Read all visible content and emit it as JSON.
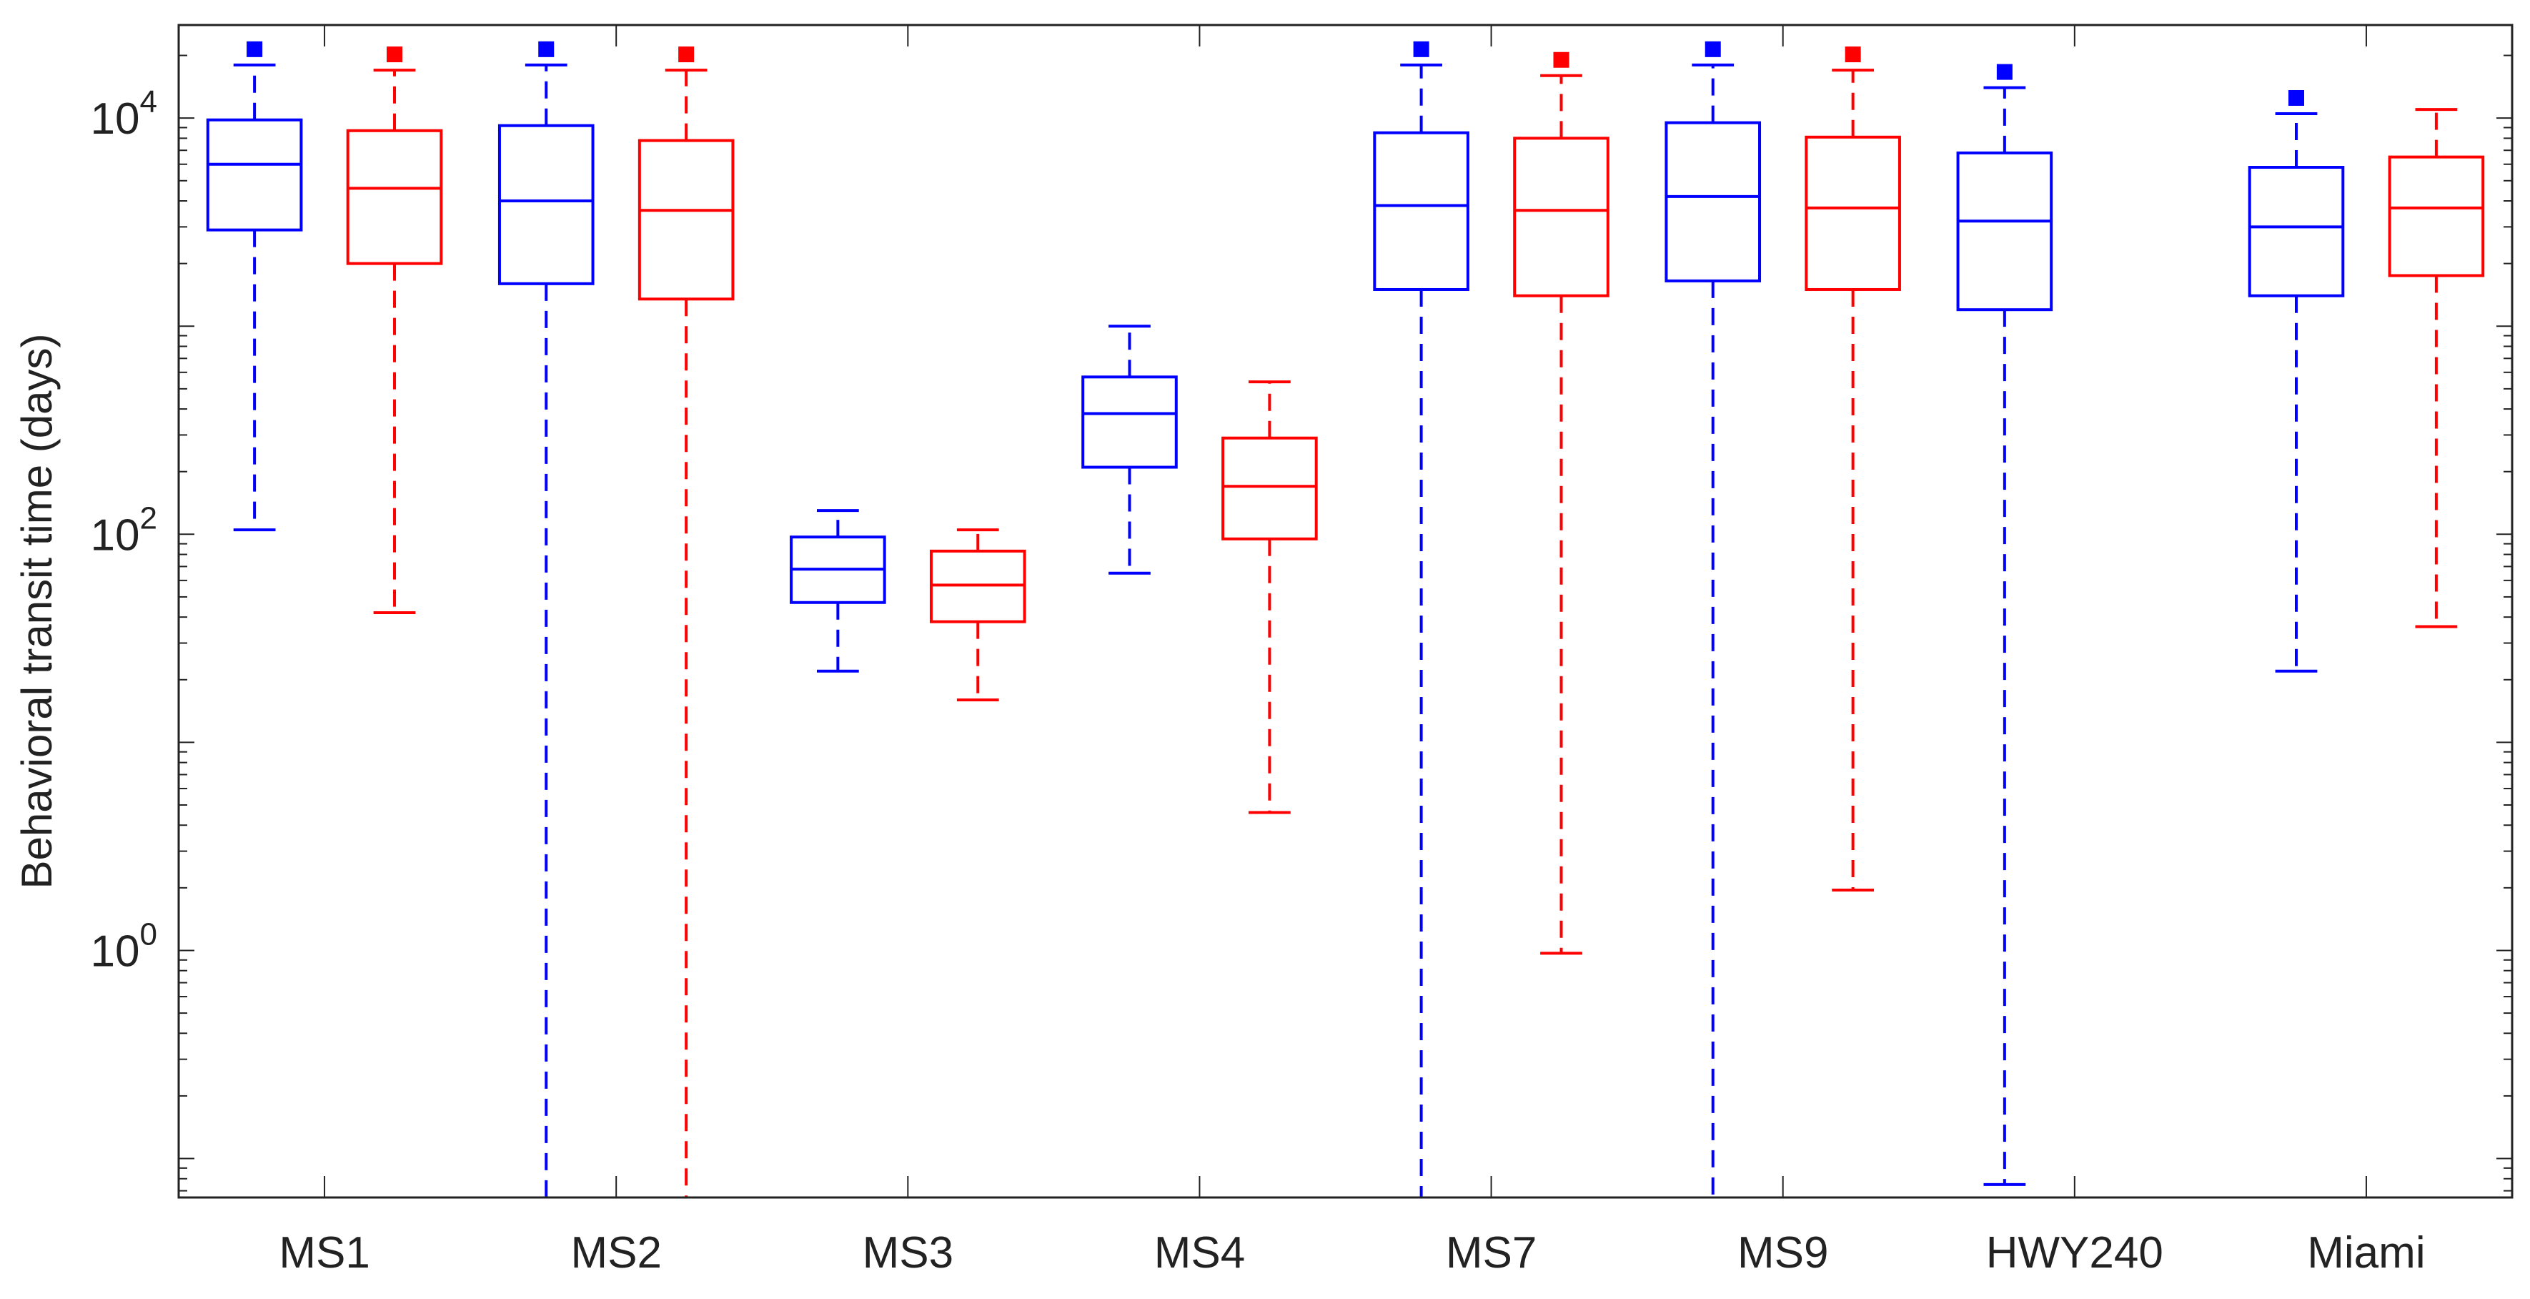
{
  "chart_data": {
    "type": "box",
    "title": "",
    "xlabel": "",
    "ylabel": "Behavioral transit time (days)",
    "yscale": "log",
    "ylim": [
      0.065,
      28000
    ],
    "y_ticks": [
      {
        "base": "10",
        "exp": "0",
        "value": 1
      },
      {
        "base": "10",
        "exp": "2",
        "value": 100
      },
      {
        "base": "10",
        "exp": "4",
        "value": 10000
      }
    ],
    "categories": [
      "MS1",
      "MS2",
      "MS3",
      "MS4",
      "MS7",
      "MS9",
      "HWY240",
      "Miami"
    ],
    "series": [
      {
        "name": "blue",
        "color": "#0000ff",
        "boxes": [
          {
            "category": "MS1",
            "whisker_low": 105,
            "q1": 2900,
            "median": 6000,
            "q3": 9800,
            "whisker_high": 18000,
            "outlier_high": true
          },
          {
            "category": "MS2",
            "whisker_low": 0.065,
            "q1": 1600,
            "median": 4000,
            "q3": 9200,
            "whisker_high": 18000,
            "outlier_high": true
          },
          {
            "category": "MS3",
            "whisker_low": 22,
            "q1": 47,
            "median": 68,
            "q3": 97,
            "whisker_high": 130,
            "outlier_high": false
          },
          {
            "category": "MS4",
            "whisker_low": 65,
            "q1": 210,
            "median": 380,
            "q3": 570,
            "whisker_high": 1000,
            "outlier_high": false
          },
          {
            "category": "MS7",
            "whisker_low": 0.065,
            "q1": 1500,
            "median": 3800,
            "q3": 8500,
            "whisker_high": 18000,
            "outlier_high": true
          },
          {
            "category": "MS9",
            "whisker_low": 0.065,
            "q1": 1650,
            "median": 4200,
            "q3": 9500,
            "whisker_high": 18000,
            "outlier_high": true
          },
          {
            "category": "HWY240",
            "whisker_low": 0.075,
            "q1": 1200,
            "median": 3200,
            "q3": 6800,
            "whisker_high": 14000,
            "outlier_high": true
          },
          {
            "category": "Miami",
            "whisker_low": 22,
            "q1": 1400,
            "median": 3000,
            "q3": 5800,
            "whisker_high": 10500,
            "outlier_high": true
          }
        ]
      },
      {
        "name": "red",
        "color": "#ff0000",
        "boxes": [
          {
            "category": "MS1",
            "whisker_low": 42,
            "q1": 2000,
            "median": 4600,
            "q3": 8700,
            "whisker_high": 17000,
            "outlier_high": true
          },
          {
            "category": "MS2",
            "whisker_low": 0.065,
            "q1": 1350,
            "median": 3600,
            "q3": 7800,
            "whisker_high": 17000,
            "outlier_high": true
          },
          {
            "category": "MS3",
            "whisker_low": 16,
            "q1": 38,
            "median": 57,
            "q3": 83,
            "whisker_high": 105,
            "outlier_high": false
          },
          {
            "category": "MS4",
            "whisker_low": 4.6,
            "q1": 95,
            "median": 170,
            "q3": 290,
            "whisker_high": 540,
            "outlier_high": false
          },
          {
            "category": "MS7",
            "whisker_low": 0.97,
            "q1": 1400,
            "median": 3600,
            "q3": 8000,
            "whisker_high": 16000,
            "outlier_high": true
          },
          {
            "category": "MS9",
            "whisker_low": 1.95,
            "q1": 1500,
            "median": 3700,
            "q3": 8100,
            "whisker_high": 17000,
            "outlier_high": true
          },
          {
            "category": "Miami",
            "whisker_low": 36,
            "q1": 1750,
            "median": 3700,
            "q3": 6500,
            "whisker_high": 11000,
            "outlier_high": false
          }
        ]
      }
    ],
    "grid": false,
    "legend": "none"
  }
}
